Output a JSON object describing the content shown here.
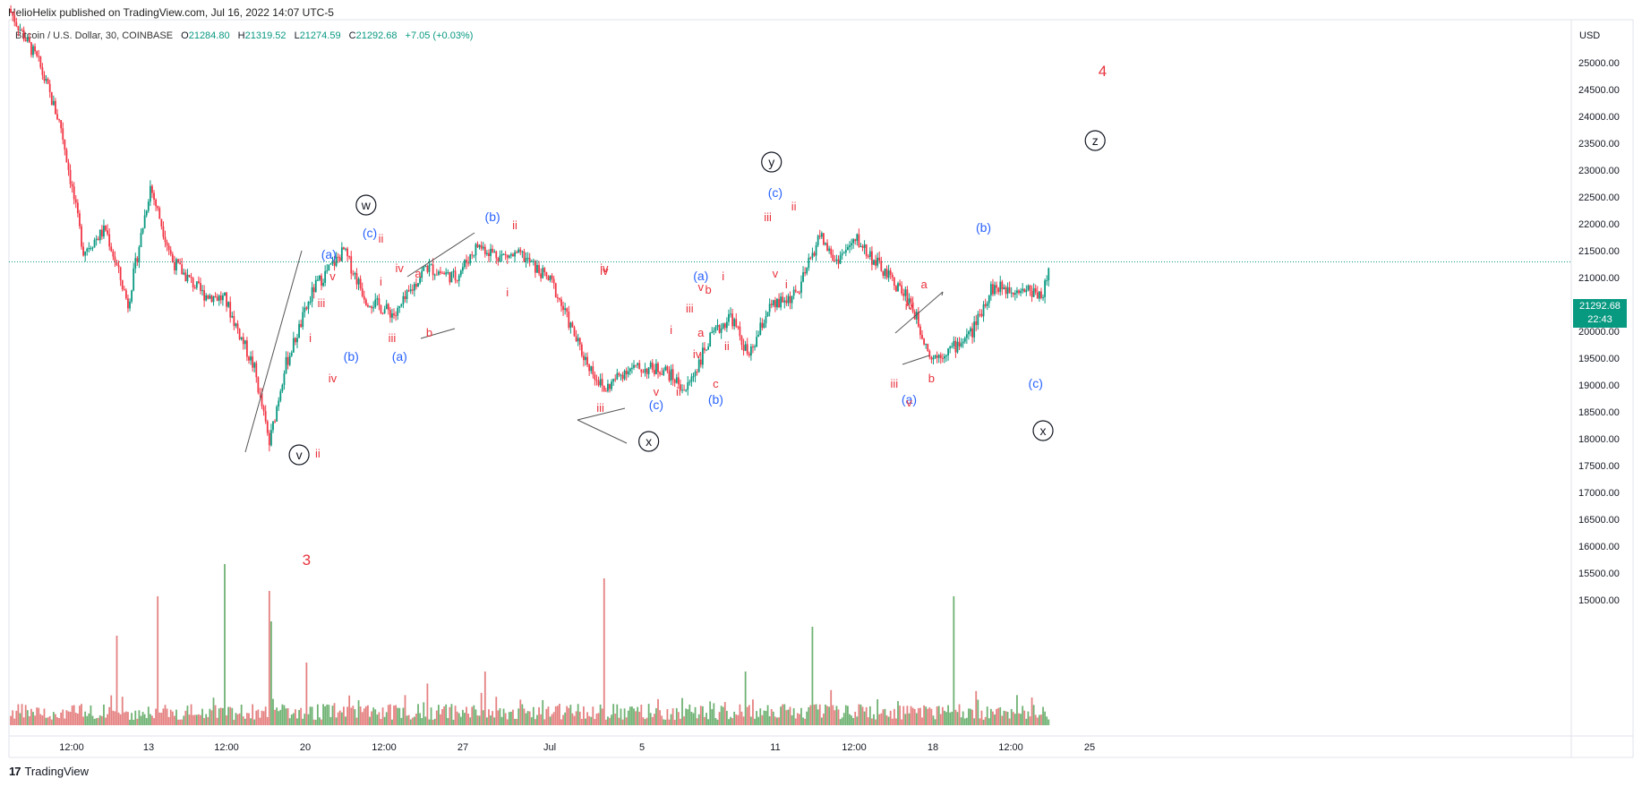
{
  "header": {
    "publisher": "HelioHelix published on TradingView.com, Jul 16, 2022 14:07 UTC-5"
  },
  "symbol": {
    "name": "Bitcoin / U.S. Dollar, 30, COINBASE",
    "open_label": "O",
    "open": "21284.80",
    "high_label": "H",
    "high": "21319.52",
    "low_label": "L",
    "low": "21274.59",
    "close_label": "C",
    "close": "21292.68",
    "change": "+7.05 (+0.03%)"
  },
  "price_scale": {
    "currency": "USD",
    "last_price": "21292.68",
    "countdown": "22:43"
  },
  "footer": {
    "brand": "TradingView",
    "logo": "17"
  },
  "colors": {
    "up": "#089981",
    "down": "#f23645",
    "vol_up": "#56a55a",
    "vol_down": "#e06b6b",
    "wave_red": "#e8323c",
    "wave_blue": "#2962ff",
    "circle": "#131722"
  },
  "chart_data": {
    "type": "candlestick",
    "title": "Bitcoin / U.S. Dollar, 30, COINBASE",
    "ylim": [
      14500,
      26000
    ],
    "y_ticks": [
      "25000.00",
      "24500.00",
      "24000.00",
      "23500.00",
      "23000.00",
      "22500.00",
      "22000.00",
      "21500.00",
      "21000.00",
      "20500.00",
      "20000.00",
      "19500.00",
      "19000.00",
      "18500.00",
      "18000.00",
      "17500.00",
      "17000.00",
      "16500.00",
      "16000.00",
      "15500.00",
      "15000.00"
    ],
    "x_ticks": [
      "12:00",
      "13",
      "12:00",
      "20",
      "12:00",
      "27",
      "Jul",
      "5",
      "11",
      "12:00",
      "18",
      "12:00",
      "25"
    ],
    "last_price": 21292.68,
    "close_path": [
      {
        "t": 0.0,
        "p": 26000
      },
      {
        "t": 0.8,
        "p": 25000
      },
      {
        "t": 1.4,
        "p": 23800
      },
      {
        "t": 2.0,
        "p": 21500
      },
      {
        "t": 2.6,
        "p": 21900
      },
      {
        "t": 3.2,
        "p": 20500
      },
      {
        "t": 3.8,
        "p": 22700
      },
      {
        "t": 4.4,
        "p": 21300
      },
      {
        "t": 5.2,
        "p": 20700
      },
      {
        "t": 5.8,
        "p": 20600
      },
      {
        "t": 6.6,
        "p": 19300
      },
      {
        "t": 7.0,
        "p": 17900
      },
      {
        "t": 7.4,
        "p": 19300
      },
      {
        "t": 8.2,
        "p": 20800
      },
      {
        "t": 9.0,
        "p": 21500
      },
      {
        "t": 9.6,
        "p": 20600
      },
      {
        "t": 10.4,
        "p": 20300
      },
      {
        "t": 11.2,
        "p": 21200
      },
      {
        "t": 12.0,
        "p": 21000
      },
      {
        "t": 12.6,
        "p": 21600
      },
      {
        "t": 13.2,
        "p": 21400
      },
      {
        "t": 13.8,
        "p": 21400
      },
      {
        "t": 14.6,
        "p": 20900
      },
      {
        "t": 15.4,
        "p": 19600
      },
      {
        "t": 16.0,
        "p": 18900
      },
      {
        "t": 16.6,
        "p": 19300
      },
      {
        "t": 17.6,
        "p": 19300
      },
      {
        "t": 18.2,
        "p": 18900
      },
      {
        "t": 18.8,
        "p": 19800
      },
      {
        "t": 19.4,
        "p": 20300
      },
      {
        "t": 19.9,
        "p": 19500
      },
      {
        "t": 20.4,
        "p": 20400
      },
      {
        "t": 21.2,
        "p": 20700
      },
      {
        "t": 21.8,
        "p": 21800
      },
      {
        "t": 22.2,
        "p": 21300
      },
      {
        "t": 22.8,
        "p": 21700
      },
      {
        "t": 23.4,
        "p": 21200
      },
      {
        "t": 24.2,
        "p": 20600
      },
      {
        "t": 24.8,
        "p": 19500
      },
      {
        "t": 25.4,
        "p": 19700
      },
      {
        "t": 25.9,
        "p": 20000
      },
      {
        "t": 26.4,
        "p": 20800
      },
      {
        "t": 27.2,
        "p": 20800
      },
      {
        "t": 27.8,
        "p": 20700
      },
      {
        "t": 28.0,
        "p": 21300
      }
    ],
    "volume_spikes": [
      {
        "t": 4.0,
        "v": 0.72
      },
      {
        "t": 5.8,
        "v": 0.9
      },
      {
        "t": 7.0,
        "v": 0.75
      },
      {
        "t": 7.05,
        "v": 0.58
      },
      {
        "t": 16.0,
        "v": 0.82
      },
      {
        "t": 21.6,
        "v": 0.55
      },
      {
        "t": 25.4,
        "v": 0.72
      },
      {
        "t": 8.0,
        "v": 0.35
      },
      {
        "t": 2.9,
        "v": 0.5
      },
      {
        "t": 12.8,
        "v": 0.3
      },
      {
        "t": 19.8,
        "v": 0.3
      },
      {
        "t": 28.0,
        "v": 0.3
      }
    ],
    "annotations": [
      {
        "text": "w",
        "price": 22350,
        "t": 9.6,
        "style": "circle"
      },
      {
        "text": "v",
        "price": 17700,
        "t": 7.8,
        "style": "circle"
      },
      {
        "text": "x",
        "price": 17950,
        "t": 17.2,
        "style": "circle"
      },
      {
        "text": "y",
        "price": 23150,
        "t": 20.5,
        "style": "circle"
      },
      {
        "text": "z",
        "price": 23550,
        "t": 29.2,
        "style": "circle"
      },
      {
        "text": "x",
        "price": 18150,
        "t": 27.8,
        "style": "circle"
      },
      {
        "text": "4",
        "price": 24750,
        "t": 29.4,
        "style": "red-big"
      },
      {
        "text": "3",
        "price": 15650,
        "t": 8.0,
        "style": "red-big"
      },
      {
        "text": "(a)",
        "price": 21350,
        "t": 8.6,
        "style": "blue"
      },
      {
        "text": "(c)",
        "price": 21750,
        "t": 9.7,
        "style": "blue"
      },
      {
        "text": "(b)",
        "price": 19450,
        "t": 9.2,
        "style": "blue"
      },
      {
        "text": "(a)",
        "price": 19450,
        "t": 10.5,
        "style": "blue"
      },
      {
        "text": "(b)",
        "price": 22050,
        "t": 13.0,
        "style": "blue"
      },
      {
        "text": "(c)",
        "price": 18550,
        "t": 17.4,
        "style": "blue"
      },
      {
        "text": "(a)",
        "price": 20950,
        "t": 18.6,
        "style": "blue"
      },
      {
        "text": "(b)",
        "price": 18650,
        "t": 19.0,
        "style": "blue"
      },
      {
        "text": "(c)",
        "price": 22500,
        "t": 20.6,
        "style": "blue"
      },
      {
        "text": "(a)",
        "price": 18650,
        "t": 24.2,
        "style": "blue"
      },
      {
        "text": "(b)",
        "price": 21850,
        "t": 26.2,
        "style": "blue"
      },
      {
        "text": "(c)",
        "price": 18950,
        "t": 27.6,
        "style": "blue"
      },
      {
        "text": "ii",
        "price": 17650,
        "t": 8.3,
        "style": "red"
      },
      {
        "text": "i",
        "price": 19800,
        "t": 8.1,
        "style": "red"
      },
      {
        "text": "iii",
        "price": 20450,
        "t": 8.4,
        "style": "red"
      },
      {
        "text": "iv",
        "price": 19050,
        "t": 8.7,
        "style": "red"
      },
      {
        "text": "v",
        "price": 20950,
        "t": 8.7,
        "style": "red"
      },
      {
        "text": "ii",
        "price": 21650,
        "t": 10.0,
        "style": "red"
      },
      {
        "text": "i",
        "price": 20850,
        "t": 10.0,
        "style": "red"
      },
      {
        "text": "iv",
        "price": 21100,
        "t": 10.5,
        "style": "red"
      },
      {
        "text": "iii",
        "price": 19800,
        "t": 10.3,
        "style": "red"
      },
      {
        "text": "a",
        "price": 21000,
        "t": 11.0,
        "style": "red"
      },
      {
        "text": "b",
        "price": 19900,
        "t": 11.3,
        "style": "red"
      },
      {
        "text": "ii",
        "price": 21900,
        "t": 13.6,
        "style": "red"
      },
      {
        "text": "i",
        "price": 20650,
        "t": 13.4,
        "style": "red"
      },
      {
        "text": "iv",
        "price": 21100,
        "t": 16.0,
        "style": "red"
      },
      {
        "text": "iii",
        "price": 18500,
        "t": 15.9,
        "style": "red"
      },
      {
        "text": "v",
        "price": 18800,
        "t": 17.4,
        "style": "red"
      },
      {
        "text": "ii",
        "price": 18800,
        "t": 18.0,
        "style": "red"
      },
      {
        "text": "i",
        "price": 19950,
        "t": 17.8,
        "style": "red"
      },
      {
        "text": "iii",
        "price": 20350,
        "t": 18.3,
        "style": "red"
      },
      {
        "text": "iv",
        "price": 19500,
        "t": 18.5,
        "style": "red"
      },
      {
        "text": "a",
        "price": 19900,
        "t": 18.6,
        "style": "red"
      },
      {
        "text": "v",
        "price": 20750,
        "t": 18.6,
        "style": "red"
      },
      {
        "text": "b",
        "price": 20700,
        "t": 18.8,
        "style": "red"
      },
      {
        "text": "i",
        "price": 20950,
        "t": 19.2,
        "style": "red"
      },
      {
        "text": "ii",
        "price": 19650,
        "t": 19.3,
        "style": "red"
      },
      {
        "text": "c",
        "price": 18950,
        "t": 19.0,
        "style": "red"
      },
      {
        "text": "iii",
        "price": 22050,
        "t": 20.4,
        "style": "red"
      },
      {
        "text": "ii",
        "price": 22250,
        "t": 21.1,
        "style": "red"
      },
      {
        "text": "v",
        "price": 21000,
        "t": 20.6,
        "style": "red"
      },
      {
        "text": "i",
        "price": 20800,
        "t": 20.9,
        "style": "red"
      },
      {
        "text": "a",
        "price": 20800,
        "t": 24.6,
        "style": "red"
      },
      {
        "text": "iv",
        "price": 20400,
        "t": 24.2,
        "style": "red"
      },
      {
        "text": "iii",
        "price": 18950,
        "t": 23.8,
        "style": "red"
      },
      {
        "text": "v",
        "price": 18600,
        "t": 24.2,
        "style": "red"
      },
      {
        "text": "b",
        "price": 19050,
        "t": 24.8,
        "style": "red"
      },
      {
        "text": "iv",
        "price": 21050,
        "t": 16.0,
        "style": "red"
      }
    ]
  }
}
